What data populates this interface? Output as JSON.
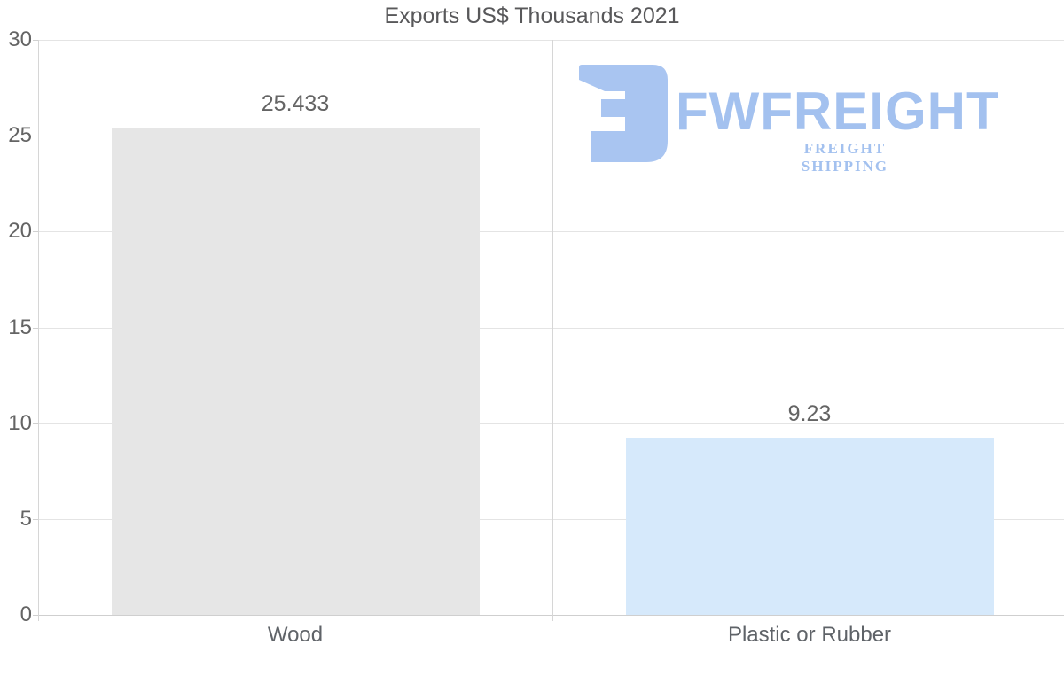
{
  "chart_data": {
    "type": "bar",
    "title": "Exports US$ Thousands 2021",
    "categories": [
      "Wood",
      "Plastic or Rubber"
    ],
    "values": [
      25.433,
      9.23
    ],
    "value_labels": [
      "25.433",
      "9.23"
    ],
    "series": [
      {
        "name": "Exports",
        "values": [
          25.433,
          9.23
        ]
      }
    ],
    "bar_colors": [
      "#e6e6e6",
      "#d6e9fb"
    ],
    "xlabel": "",
    "ylabel": "",
    "ylim": [
      0,
      30
    ],
    "yticks": [
      0,
      5,
      10,
      15,
      20,
      25,
      30
    ],
    "grid": "horizontal",
    "legend": "none"
  },
  "logo": {
    "brand": "FWFREIGHT",
    "tagline": "FREIGHT SHIPPING",
    "icon": "fwfreight-monogram",
    "color": "#a3c1ef"
  },
  "colors": {
    "background": "#ffffff",
    "bar_wood": "#e6e6e6",
    "bar_plastic": "#d6e9fb",
    "gridline": "#e4e4e4",
    "axis_line": "#d6d6d6",
    "title_text": "#58585a",
    "label_text": "#646464",
    "logo_blue": "#a3c1ef"
  }
}
